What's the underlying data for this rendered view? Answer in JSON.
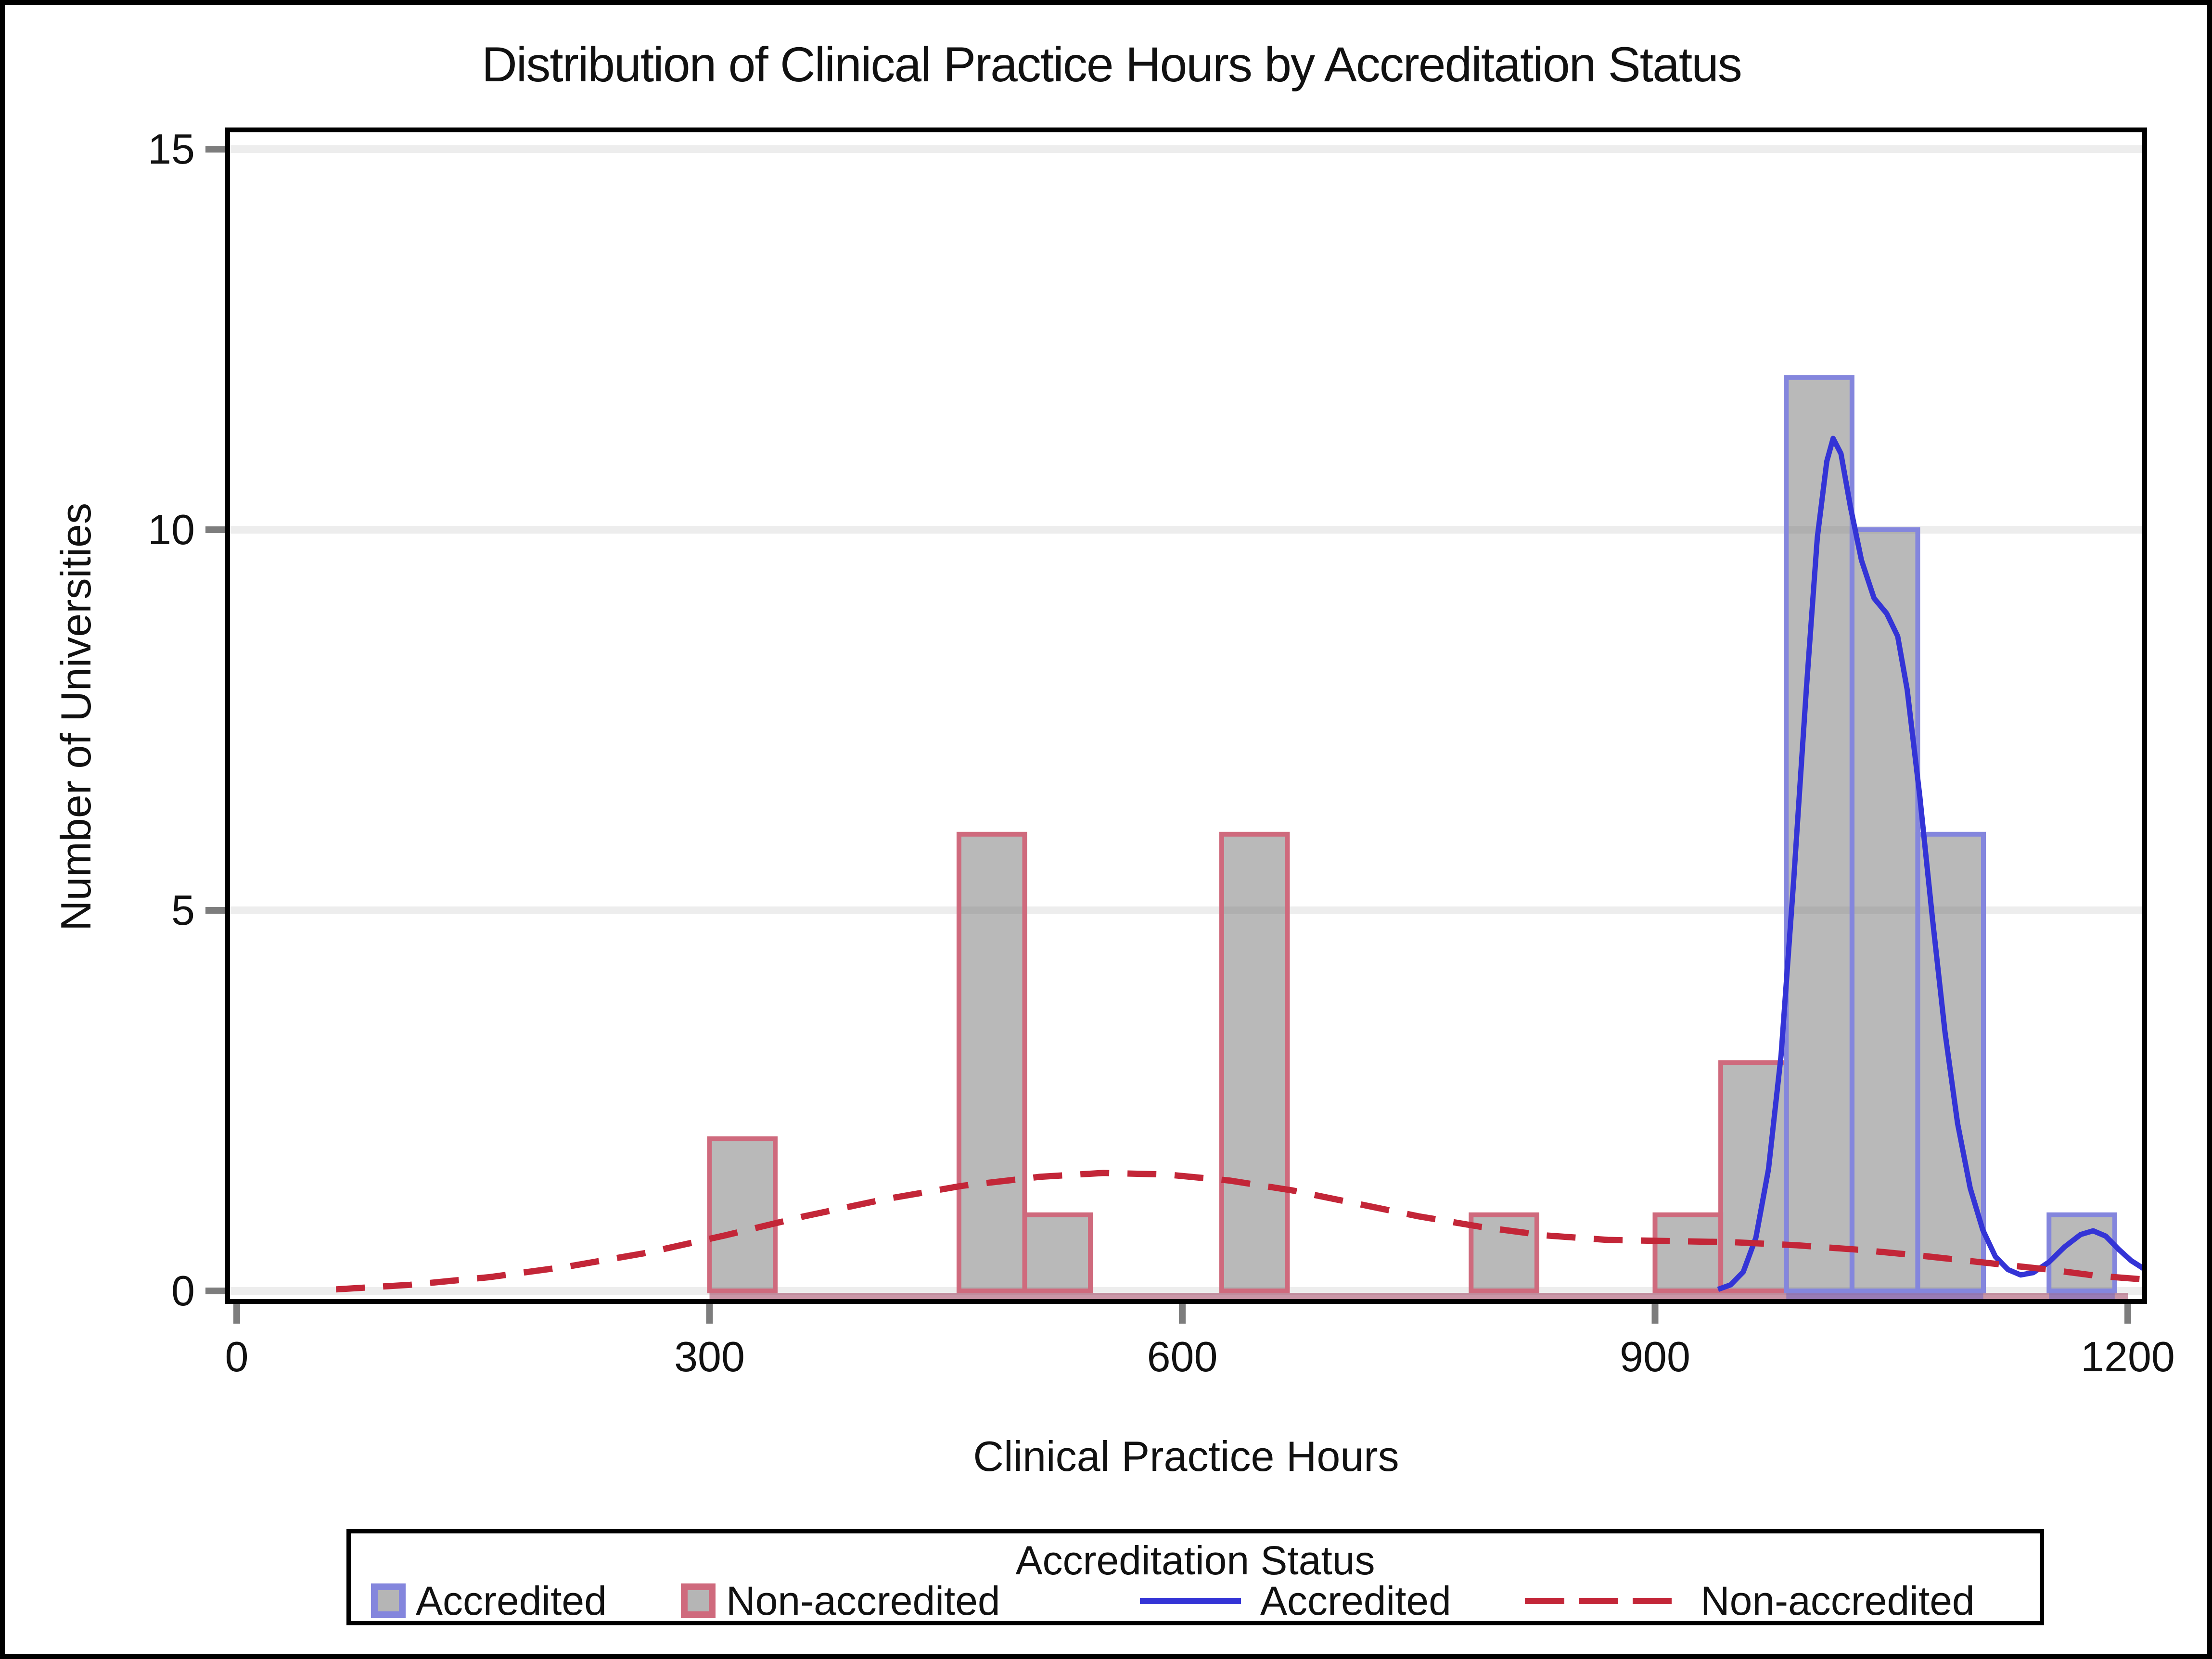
{
  "chart_data": {
    "type": "histogram_with_density_overlay",
    "title": "Distribution of Clinical Practice Hours by Accreditation Status",
    "xlabel": "Clinical Practice Hours",
    "ylabel": "Number of Universities",
    "xlim": [
      0,
      1211
    ],
    "ylim": [
      0,
      15
    ],
    "x_ticks": [
      0,
      300,
      600,
      900,
      1200
    ],
    "y_ticks": [
      15,
      10,
      5,
      0
    ],
    "grid": "horizontal",
    "bin_width_hours": 41.7,
    "histogram_series": [
      {
        "name": "Non-accredited",
        "outline_color": "#cf6a7d",
        "bars": [
          {
            "x": 300,
            "count": 2
          },
          {
            "x": 458.3,
            "count": 6
          },
          {
            "x": 500,
            "count": 1
          },
          {
            "x": 625,
            "count": 6
          },
          {
            "x": 783.3,
            "count": 1
          },
          {
            "x": 900,
            "count": 1
          },
          {
            "x": 941.7,
            "count": 3
          }
        ]
      },
      {
        "name": "Accredited",
        "outline_color": "#8486dd",
        "bars": [
          {
            "x": 983.3,
            "count": 12
          },
          {
            "x": 1025,
            "count": 10
          },
          {
            "x": 1066.7,
            "count": 6
          },
          {
            "x": 1150,
            "count": 1
          }
        ]
      }
    ],
    "density_series": [
      {
        "name": "Accredited",
        "color": "#3434d6",
        "style": "solid",
        "points": [
          [
            940,
            0.02
          ],
          [
            948,
            0.08
          ],
          [
            956,
            0.25
          ],
          [
            964,
            0.7
          ],
          [
            972,
            1.6
          ],
          [
            980,
            3.1
          ],
          [
            988,
            5.4
          ],
          [
            996,
            7.9
          ],
          [
            1003,
            9.9
          ],
          [
            1009,
            10.9
          ],
          [
            1013,
            11.2
          ],
          [
            1018,
            11.0
          ],
          [
            1024,
            10.3
          ],
          [
            1031,
            9.6
          ],
          [
            1039,
            9.1
          ],
          [
            1047,
            8.9
          ],
          [
            1054,
            8.6
          ],
          [
            1060,
            7.9
          ],
          [
            1068,
            6.5
          ],
          [
            1076,
            4.9
          ],
          [
            1084,
            3.4
          ],
          [
            1092,
            2.2
          ],
          [
            1100,
            1.35
          ],
          [
            1108,
            0.8
          ],
          [
            1116,
            0.45
          ],
          [
            1124,
            0.28
          ],
          [
            1132,
            0.21
          ],
          [
            1140,
            0.24
          ],
          [
            1150,
            0.38
          ],
          [
            1160,
            0.58
          ],
          [
            1170,
            0.74
          ],
          [
            1178,
            0.79
          ],
          [
            1186,
            0.72
          ],
          [
            1194,
            0.55
          ],
          [
            1202,
            0.4
          ],
          [
            1211,
            0.28
          ]
        ]
      },
      {
        "name": "Non-accredited",
        "color": "#c32638",
        "style": "dashed",
        "points": [
          [
            63,
            0.02
          ],
          [
            110,
            0.08
          ],
          [
            160,
            0.18
          ],
          [
            210,
            0.32
          ],
          [
            260,
            0.5
          ],
          [
            310,
            0.73
          ],
          [
            360,
            0.98
          ],
          [
            410,
            1.2
          ],
          [
            460,
            1.38
          ],
          [
            510,
            1.5
          ],
          [
            550,
            1.55
          ],
          [
            590,
            1.53
          ],
          [
            630,
            1.45
          ],
          [
            670,
            1.32
          ],
          [
            710,
            1.15
          ],
          [
            750,
            0.98
          ],
          [
            790,
            0.84
          ],
          [
            830,
            0.73
          ],
          [
            870,
            0.67
          ],
          [
            910,
            0.655
          ],
          [
            950,
            0.64
          ],
          [
            990,
            0.6
          ],
          [
            1030,
            0.54
          ],
          [
            1070,
            0.46
          ],
          [
            1110,
            0.37
          ],
          [
            1150,
            0.28
          ],
          [
            1180,
            0.2
          ],
          [
            1211,
            0.15
          ]
        ]
      }
    ],
    "legend": {
      "title": "Accreditation Status",
      "entries": [
        {
          "kind": "fill",
          "label": "Accredited",
          "swatch_border": "#8486dd",
          "swatch_fill": "#b5b5b5"
        },
        {
          "kind": "fill",
          "label": "Non-accredited",
          "swatch_border": "#cf6a7d",
          "swatch_fill": "#b5b5b5"
        },
        {
          "kind": "line",
          "label": "Accredited",
          "color": "#3434d6",
          "dashed": false
        },
        {
          "kind": "line",
          "label": "Non-accredited",
          "color": "#c32638",
          "dashed": true
        }
      ]
    },
    "colors": {
      "bar_fill": "rgba(100,100,100,0.45)",
      "accredited_outline": "#8486dd",
      "nonaccredited_outline": "#cf6a7d",
      "accredited_line": "#3434d6",
      "nonaccredited_line": "#c32638",
      "gridline": "#ededed",
      "tick": "#7d7d7d",
      "frame": "#000000",
      "baseline_band_red": "rgba(150,45,80,0.5)",
      "baseline_band_blue": "rgba(90,90,200,0.45)"
    }
  }
}
